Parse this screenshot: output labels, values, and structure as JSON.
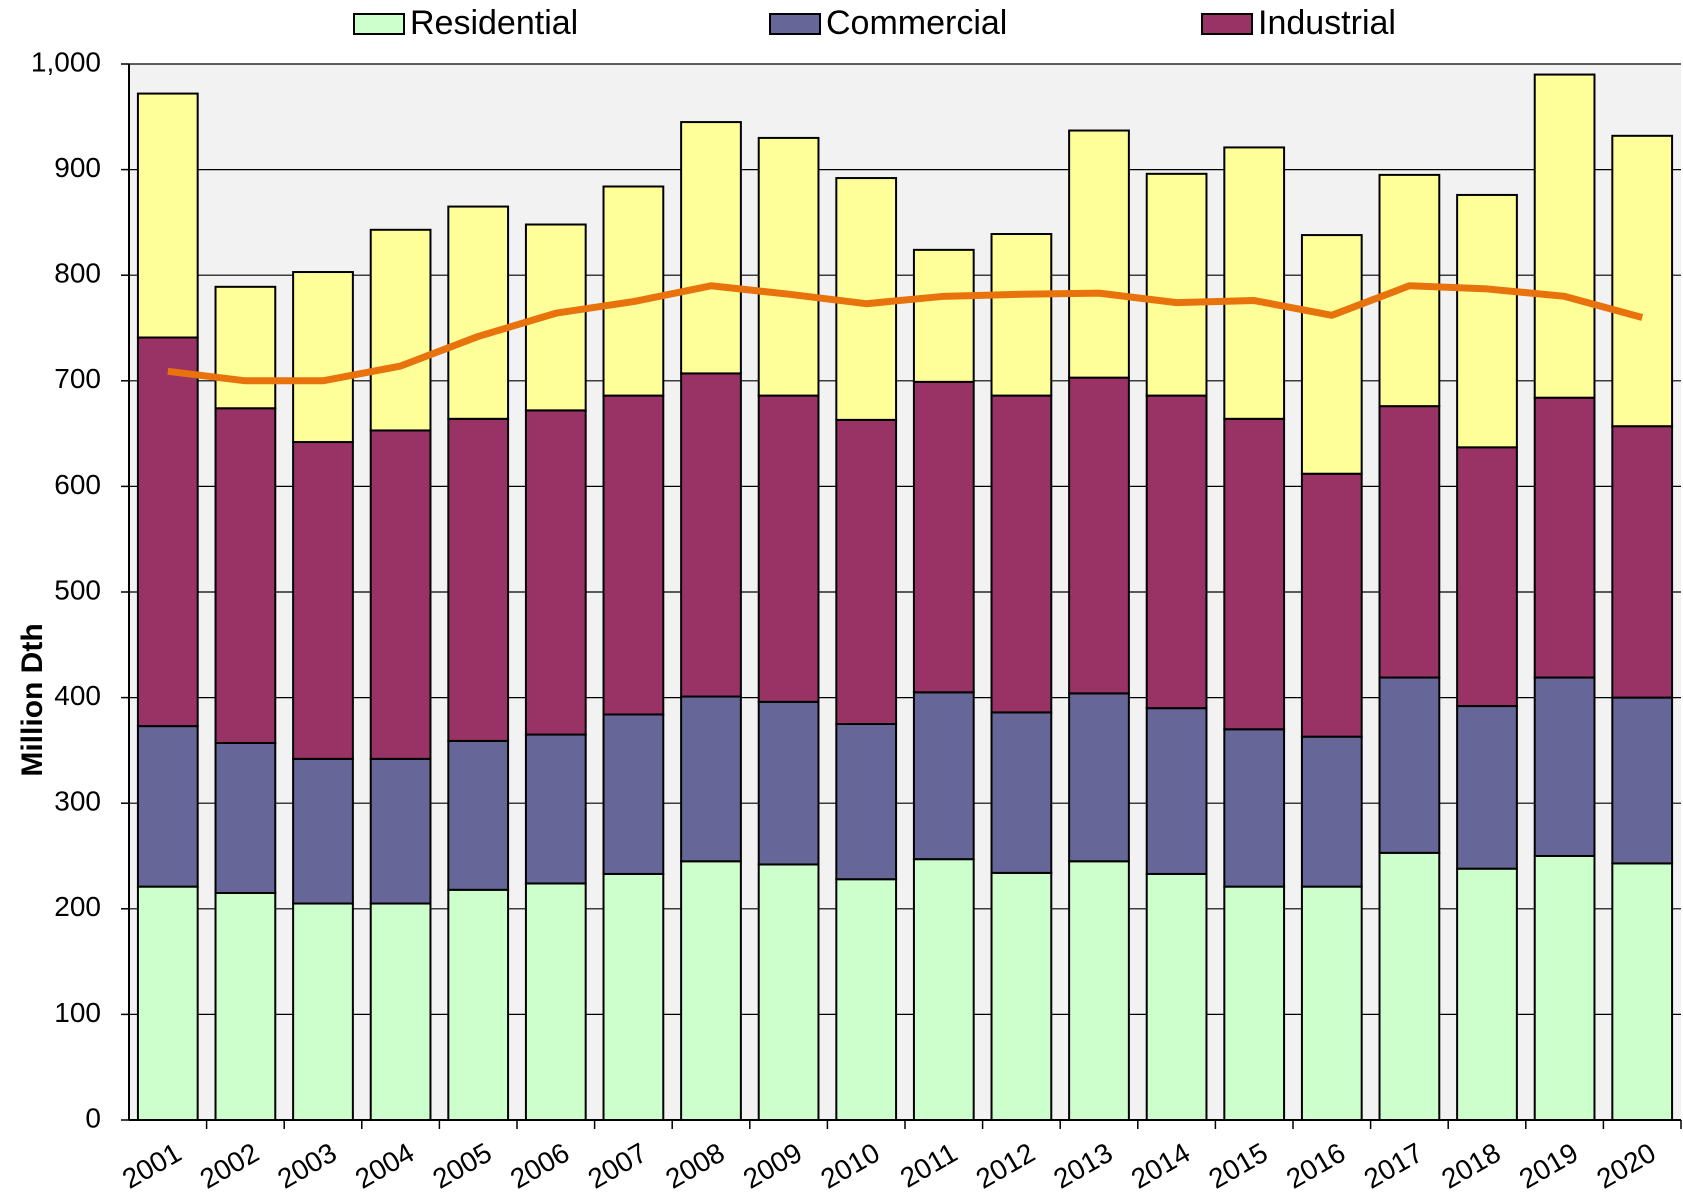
{
  "chart_data": {
    "type": "bar",
    "stacked": true,
    "y_axis_label": "Million Dth",
    "categories": [
      "2001",
      "2002",
      "2003",
      "2004",
      "2005",
      "2006",
      "2007",
      "2008",
      "2009",
      "2010",
      "2011",
      "2012",
      "2013",
      "2014",
      "2015",
      "2016",
      "2017",
      "2018",
      "2019",
      "2020"
    ],
    "series": [
      {
        "name": "Residential",
        "color": "#ccffcc",
        "values": [
          221,
          215,
          205,
          205,
          218,
          224,
          233,
          245,
          242,
          228,
          247,
          234,
          245,
          233,
          221,
          221,
          253,
          238,
          250,
          243
        ]
      },
      {
        "name": "Commercial",
        "color": "#666699",
        "values": [
          152,
          142,
          137,
          137,
          141,
          141,
          151,
          156,
          154,
          147,
          158,
          152,
          159,
          157,
          149,
          142,
          166,
          154,
          169,
          157
        ]
      },
      {
        "name": "Industrial",
        "color": "#993366",
        "values": [
          368,
          317,
          300,
          311,
          305,
          307,
          302,
          306,
          290,
          288,
          294,
          300,
          299,
          296,
          294,
          249,
          257,
          245,
          265,
          257
        ]
      },
      {
        "color": "#ffff99",
        "values": [
          231,
          115,
          161,
          190,
          201,
          176,
          198,
          238,
          244,
          229,
          125,
          153,
          234,
          210,
          257,
          226,
          219,
          239,
          306,
          275
        ]
      },
      {
        "type": "line",
        "color": "#e8720c",
        "values": [
          709,
          700,
          700,
          714,
          742,
          764,
          775,
          790,
          782,
          773,
          780,
          782,
          783,
          774,
          776,
          762,
          790,
          787,
          780,
          760
        ]
      }
    ],
    "ylim": [
      0,
      1000
    ],
    "yticks": [
      0,
      100,
      200,
      300,
      400,
      500,
      600,
      700,
      800,
      900,
      {
        "value": 1000,
        "label": "1,000"
      }
    ],
    "grid": true,
    "legend": "top"
  }
}
